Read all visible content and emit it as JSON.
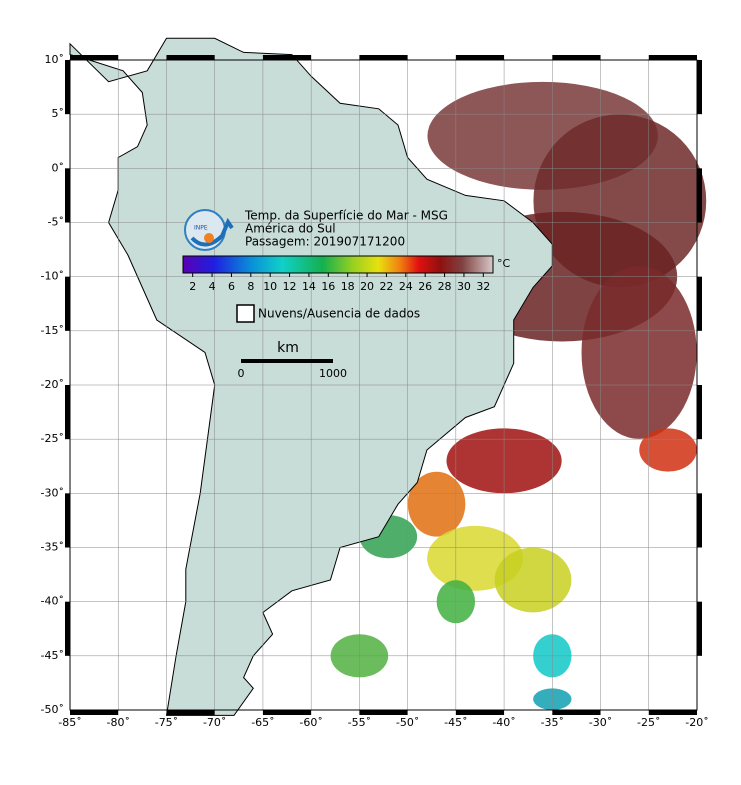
{
  "map": {
    "title": [
      "Temp. da Superfície do Mar - MSG",
      "América do Sul",
      "Passagem: 201907171200"
    ],
    "logo": "INPE",
    "xlim": [
      -85,
      -20
    ],
    "ylim": [
      -50,
      10
    ],
    "xticks": [
      {
        "value": -85,
        "label": "-85˚"
      },
      {
        "value": -80,
        "label": "-80˚"
      },
      {
        "value": -75,
        "label": "-75˚"
      },
      {
        "value": -70,
        "label": "-70˚"
      },
      {
        "value": -65,
        "label": "-65˚"
      },
      {
        "value": -60,
        "label": "-60˚"
      },
      {
        "value": -55,
        "label": "-55˚"
      },
      {
        "value": -50,
        "label": "-50˚"
      },
      {
        "value": -45,
        "label": "-45˚"
      },
      {
        "value": -40,
        "label": "-40˚"
      },
      {
        "value": -35,
        "label": "-35˚"
      },
      {
        "value": -30,
        "label": "-30˚"
      },
      {
        "value": -25,
        "label": "-25˚"
      },
      {
        "value": -20,
        "label": "-20˚"
      }
    ],
    "yticks": [
      {
        "value": 10,
        "label": "10˚"
      },
      {
        "value": 5,
        "label": "5˚"
      },
      {
        "value": 0,
        "label": "0˚"
      },
      {
        "value": -5,
        "label": "-5˚"
      },
      {
        "value": -10,
        "label": "-10˚"
      },
      {
        "value": -15,
        "label": "-15˚"
      },
      {
        "value": -20,
        "label": "-20˚"
      },
      {
        "value": -25,
        "label": "-25˚"
      },
      {
        "value": -30,
        "label": "-30˚"
      },
      {
        "value": -35,
        "label": "-35˚"
      },
      {
        "value": -40,
        "label": "-40˚"
      },
      {
        "value": -45,
        "label": "-45˚"
      },
      {
        "value": -50,
        "label": "-50˚"
      }
    ],
    "grid": true,
    "colorbar": {
      "range": [
        1,
        33
      ],
      "ticks": [
        2,
        4,
        6,
        8,
        10,
        12,
        14,
        16,
        18,
        20,
        22,
        24,
        26,
        28,
        30,
        32
      ],
      "unit": "°C"
    },
    "legend": "Nuvens/Ausencia de dados",
    "scale": {
      "unit": "km",
      "ticks": [
        "0",
        "1000"
      ]
    }
  }
}
